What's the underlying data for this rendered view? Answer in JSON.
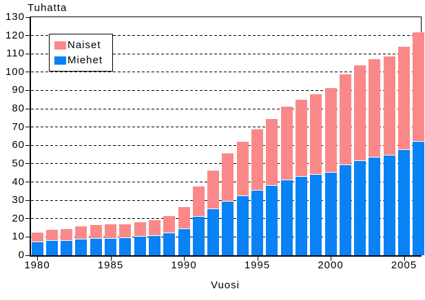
{
  "chart_data": {
    "type": "bar",
    "stacked": true,
    "title": "Tuhatta",
    "xlabel": "Vuosi",
    "categories": [
      "1980",
      "1981",
      "1982",
      "1983",
      "1984",
      "1985",
      "1986",
      "1987",
      "1988",
      "1989",
      "1990",
      "1991",
      "1992",
      "1993",
      "1994",
      "1995",
      "1996",
      "1997",
      "1998",
      "1999",
      "2000",
      "2001",
      "2002",
      "2003",
      "2004",
      "2005",
      "2006"
    ],
    "series": [
      {
        "name": "Miehet",
        "color": "#0882f4",
        "values": [
          7.3,
          7.8,
          8.0,
          8.5,
          8.9,
          9.1,
          9.3,
          10.2,
          10.4,
          11.9,
          14.4,
          20.9,
          25.1,
          29.4,
          32.3,
          35.3,
          37.8,
          41.1,
          42.7,
          44.1,
          45.1,
          49.1,
          51.6,
          53.5,
          54.5,
          57.4,
          62.0
        ]
      },
      {
        "name": "Naiset",
        "color": "#fb8888",
        "values": [
          4.8,
          5.6,
          6.0,
          7.0,
          7.4,
          7.4,
          7.1,
          7.3,
          8.4,
          9.1,
          11.6,
          16.3,
          20.9,
          25.9,
          29.3,
          33.0,
          36.1,
          39.7,
          41.8,
          43.3,
          45.9,
          49.5,
          51.7,
          53.2,
          53.8,
          56.2,
          59.2
        ]
      }
    ],
    "legend": [
      {
        "label": "Naiset",
        "color": "#fb8888"
      },
      {
        "label": "Miehet",
        "color": "#0882f4"
      }
    ],
    "ylim": [
      0,
      130
    ],
    "yticks": [
      0,
      10,
      20,
      30,
      40,
      50,
      60,
      70,
      80,
      90,
      100,
      110,
      120,
      130
    ],
    "xticks": [
      "1980",
      "1985",
      "1990",
      "1995",
      "2000",
      "2005"
    ],
    "grid": "horizontal-dashed",
    "legend_position": "top-left-inside",
    "colors": {
      "axis": "#000000",
      "background": "#ffffff",
      "grid": "#000000"
    }
  }
}
